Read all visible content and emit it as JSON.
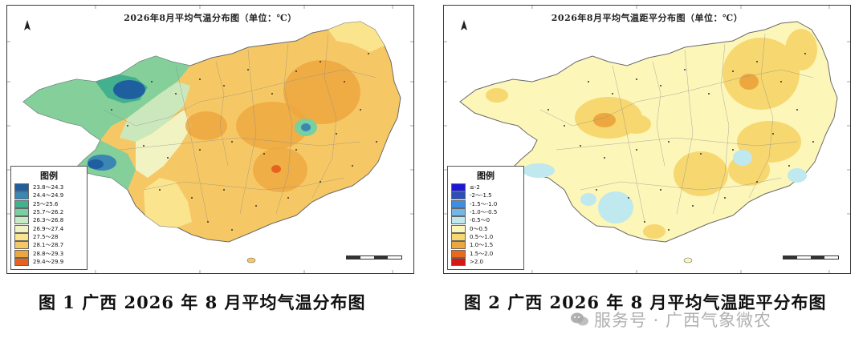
{
  "figure_1": {
    "title": "2026年8月平均气温分布图（单位：℃）",
    "caption": "图 1 广西 2026 年 8 月平均气温分布图",
    "legend": {
      "title": "图例",
      "items": [
        {
          "label": "23.8～24.3",
          "color": "#1f5fa0"
        },
        {
          "label": "24.4～24.9",
          "color": "#3a86b4"
        },
        {
          "label": "25～25.6",
          "color": "#43b08e"
        },
        {
          "label": "25.7～26.2",
          "color": "#78cfa0"
        },
        {
          "label": "26.3～26.8",
          "color": "#c7ebc5"
        },
        {
          "label": "26.9～27.4",
          "color": "#f2f3c2"
        },
        {
          "label": "27.5～28",
          "color": "#fbe48e"
        },
        {
          "label": "28.1～28.7",
          "color": "#f6c865"
        },
        {
          "label": "28.8～29.3",
          "color": "#eda73f"
        },
        {
          "label": "29.4～29.9",
          "color": "#e7621e"
        }
      ]
    }
  },
  "figure_2": {
    "title": "2026年8月平均气温距平分布图（单位：℃）",
    "caption": "图 2 广西 2026 年 8 月平均气温距平分布图",
    "legend": {
      "title": "图例",
      "items": [
        {
          "label": "≤-2",
          "color": "#1a17d6"
        },
        {
          "label": "-2～-1.5",
          "color": "#2d4fb7"
        },
        {
          "label": "-1.5～-1.0",
          "color": "#3f8fe0"
        },
        {
          "label": "-1.0～-0.5",
          "color": "#72b7e8"
        },
        {
          "label": "-0.5～0",
          "color": "#bfe8ef"
        },
        {
          "label": "0～0.5",
          "color": "#fcf6b9"
        },
        {
          "label": "0.5～1.0",
          "color": "#f7d770"
        },
        {
          "label": "1.0～1.5",
          "color": "#eda73f"
        },
        {
          "label": "1.5～2.0",
          "color": "#ea6a1d"
        },
        {
          "label": ">2.0",
          "color": "#d81616"
        }
      ]
    }
  },
  "watermark": {
    "text": "服务号 · 广西气象微农"
  }
}
